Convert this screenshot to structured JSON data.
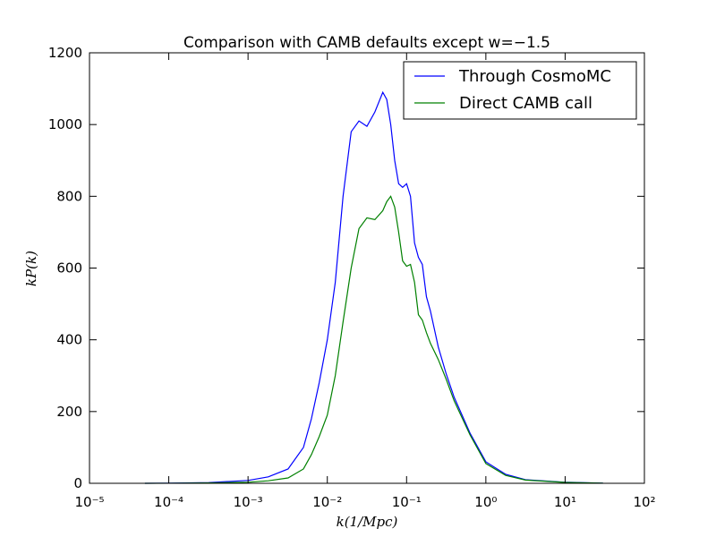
{
  "chart_data": {
    "type": "line",
    "title": "Comparison with CAMB defaults except w=−1.5",
    "x_label": "k(1/Mpc)",
    "y_label": "kP(k)",
    "x": [
      5e-05,
      0.0001,
      0.00032,
      0.001,
      0.0018,
      0.0032,
      0.005,
      0.0063,
      0.0079,
      0.01,
      0.0126,
      0.0158,
      0.02,
      0.0251,
      0.0316,
      0.0398,
      0.0501,
      0.0562,
      0.0631,
      0.0708,
      0.0794,
      0.0891,
      0.1,
      0.112,
      0.126,
      0.141,
      0.158,
      0.178,
      0.2,
      0.251,
      0.316,
      0.398,
      0.631,
      1,
      1.78,
      3.16,
      10,
      30
    ],
    "series": [
      {
        "name": "Through CosmoMC",
        "color": "#0000ff",
        "values": [
          0,
          0.5,
          2,
          8,
          18,
          40,
          100,
          180,
          280,
          400,
          560,
          800,
          980,
          1010,
          995,
          1035,
          1090,
          1070,
          1000,
          900,
          835,
          825,
          835,
          800,
          670,
          630,
          610,
          520,
          480,
          380,
          305,
          240,
          140,
          60,
          25,
          10,
          3,
          0.5
        ]
      },
      {
        "name": "Direct CAMB call",
        "color": "#008000",
        "values": [
          0,
          0.2,
          1,
          3,
          7,
          15,
          40,
          80,
          130,
          190,
          300,
          450,
          600,
          710,
          740,
          735,
          760,
          785,
          800,
          770,
          700,
          620,
          605,
          610,
          560,
          470,
          455,
          420,
          390,
          345,
          290,
          230,
          135,
          55,
          22,
          9,
          2.5,
          0.5
        ]
      }
    ],
    "x_scale": "log",
    "xlim": [
      1e-05,
      100
    ],
    "xticks": [
      {
        "value": 1e-05,
        "label": "10⁻⁵"
      },
      {
        "value": 0.0001,
        "label": "10⁻⁴"
      },
      {
        "value": 0.001,
        "label": "10⁻³"
      },
      {
        "value": 0.01,
        "label": "10⁻²"
      },
      {
        "value": 0.1,
        "label": "10⁻¹"
      },
      {
        "value": 1,
        "label": "10⁰"
      },
      {
        "value": 10,
        "label": "10¹"
      },
      {
        "value": 100,
        "label": "10²"
      }
    ],
    "ylim": [
      0,
      1200
    ],
    "yticks": [
      0,
      200,
      400,
      600,
      800,
      1000,
      1200
    ],
    "grid": false,
    "legend_position": "upper right"
  }
}
